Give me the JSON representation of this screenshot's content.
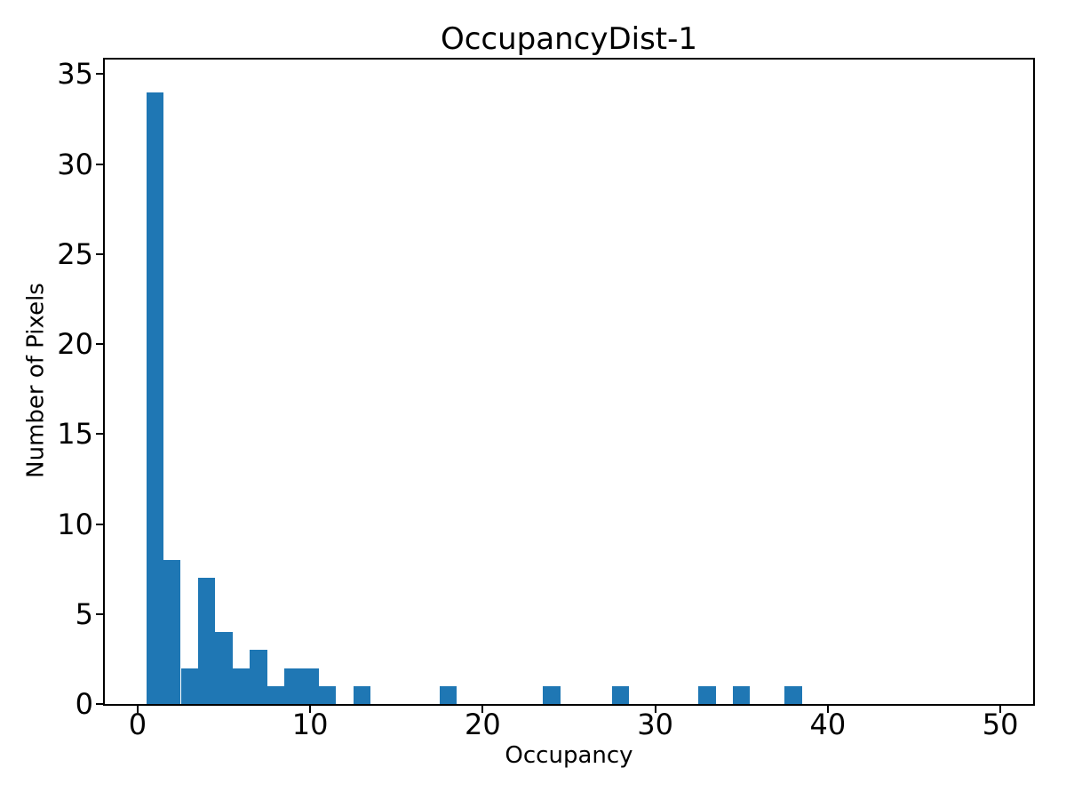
{
  "chart_data": {
    "type": "bar",
    "subtype": "histogram",
    "title": "OccupancyDist-1",
    "xlabel": "Occupancy",
    "ylabel": "Number of Pixels",
    "bar_color": "#1f77b4",
    "axis_color": "#000000",
    "background_color": "#ffffff",
    "grid": false,
    "legend_position": "none",
    "xlim": [
      -1.9,
      51.9
    ],
    "ylim": [
      0,
      35.8
    ],
    "x_ticks": [
      0,
      10,
      20,
      30,
      40,
      50
    ],
    "y_ticks": [
      0,
      5,
      10,
      15,
      20,
      25,
      30,
      35
    ],
    "bins": {
      "start": 0.5,
      "width": 1,
      "counts": [
        34,
        8,
        2,
        7,
        4,
        2,
        3,
        1,
        2,
        2,
        1,
        0,
        1,
        0,
        0,
        0,
        0,
        1,
        0,
        0,
        0,
        0,
        0,
        1,
        0,
        0,
        0,
        1,
        0,
        0,
        0,
        0,
        1,
        0,
        1,
        0,
        0,
        1
      ]
    }
  }
}
